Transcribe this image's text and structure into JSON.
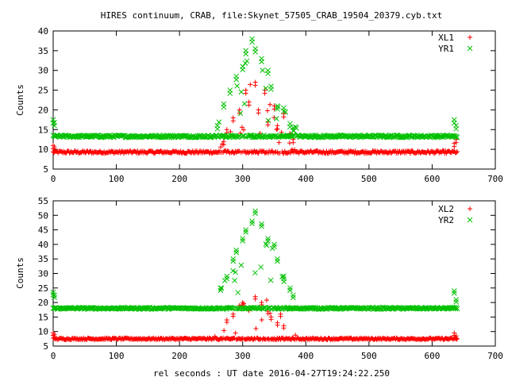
{
  "page": {
    "title": "HIRES continuum, CRAB, file:Skynet_57505_CRAB_19504_20379.cyb.txt",
    "xlabel": "rel seconds : UT date 2016-04-27T19:24:22.250"
  },
  "colors": {
    "red": "#ff0000",
    "green": "#00c000"
  },
  "chart_data": [
    {
      "type": "scatter",
      "title": "HIRES continuum, CRAB, file:Skynet_57505_CRAB_19504_20379.cyb.txt",
      "ylabel": "Counts",
      "xlim": [
        0,
        700
      ],
      "ylim": [
        5,
        40
      ],
      "xticks": [
        "0",
        "100",
        "200",
        "300",
        "400",
        "500",
        "600",
        "700"
      ],
      "yticks": [
        "5",
        "10",
        "15",
        "20",
        "25",
        "30",
        "35",
        "40"
      ],
      "legend_position": "top-right",
      "series": [
        {
          "name": "XL1",
          "marker": "plus",
          "color": "#ff0000",
          "baseline": 9.3,
          "noise": 0.35,
          "spikes": [
            [
              0,
              11.0
            ],
            [
              2,
              10.6
            ],
            [
              270,
              12.0
            ],
            [
              275,
              15.0
            ],
            [
              285,
              18.0
            ],
            [
              295,
              20.0
            ],
            [
              305,
              25.0
            ],
            [
              310,
              22.0
            ],
            [
              320,
              27.0
            ],
            [
              325,
              20.0
            ],
            [
              335,
              25.0
            ],
            [
              340,
              17.0
            ],
            [
              350,
              21.0
            ],
            [
              355,
              16.0
            ],
            [
              365,
              19.0
            ],
            [
              375,
              14.0
            ],
            [
              380,
              12.5
            ],
            [
              635,
              11.5
            ],
            [
              638,
              12.5
            ]
          ],
          "peak": {
            "center": 320,
            "width": 40,
            "height": 12
          }
        },
        {
          "name": "YR1",
          "marker": "cross",
          "color": "#00c000",
          "baseline": 13.3,
          "noise": 0.3,
          "spikes": [
            [
              0,
              17.5
            ],
            [
              2,
              16.8
            ],
            [
              260,
              16.0
            ],
            [
              270,
              21.5
            ],
            [
              280,
              25.0
            ],
            [
              290,
              28.5
            ],
            [
              300,
              31.0
            ],
            [
              305,
              35.0
            ],
            [
              315,
              38.0
            ],
            [
              320,
              35.5
            ],
            [
              330,
              33.0
            ],
            [
              340,
              30.0
            ],
            [
              345,
              26.0
            ],
            [
              355,
              21.0
            ],
            [
              365,
              20.5
            ],
            [
              375,
              16.5
            ],
            [
              380,
              15.5
            ],
            [
              635,
              17.5
            ],
            [
              638,
              16.0
            ]
          ],
          "peak": {
            "center": 318,
            "width": 45,
            "height": 15
          }
        }
      ]
    },
    {
      "type": "scatter",
      "title": "",
      "ylabel": "Counts",
      "xlabel": "rel seconds : UT date 2016-04-27T19:24:22.250",
      "xlim": [
        0,
        700
      ],
      "ylim": [
        5,
        55
      ],
      "xticks": [
        "0",
        "100",
        "200",
        "300",
        "400",
        "500",
        "600",
        "700"
      ],
      "yticks": [
        "5",
        "10",
        "15",
        "20",
        "25",
        "30",
        "35",
        "40",
        "45",
        "50",
        "55"
      ],
      "legend_position": "top-right",
      "series": [
        {
          "name": "XL2",
          "marker": "plus",
          "color": "#ff0000",
          "baseline": 7.5,
          "noise": 0.3,
          "spikes": [
            [
              0,
              9.5
            ],
            [
              2,
              9.0
            ],
            [
              275,
              14.0
            ],
            [
              285,
              16.0
            ],
            [
              295,
              19.0
            ],
            [
              300,
              20.0
            ],
            [
              310,
              18.0
            ],
            [
              320,
              22.0
            ],
            [
              330,
              20.0
            ],
            [
              340,
              17.0
            ],
            [
              345,
              15.0
            ],
            [
              355,
              13.0
            ],
            [
              360,
              16.0
            ],
            [
              365,
              12.0
            ],
            [
              635,
              9.5
            ],
            [
              638,
              8.5
            ]
          ],
          "peak": {
            "center": 320,
            "width": 40,
            "height": 12
          }
        },
        {
          "name": "YR2",
          "marker": "cross",
          "color": "#00c000",
          "baseline": 18.0,
          "noise": 0.3,
          "spikes": [
            [
              0,
              23.5
            ],
            [
              2,
              22.5
            ],
            [
              265,
              25.0
            ],
            [
              275,
              29.0
            ],
            [
              285,
              35.0
            ],
            [
              290,
              38.0
            ],
            [
              300,
              42.0
            ],
            [
              305,
              45.0
            ],
            [
              315,
              48.0
            ],
            [
              320,
              51.5
            ],
            [
              330,
              47.0
            ],
            [
              340,
              42.0
            ],
            [
              350,
              40.0
            ],
            [
              355,
              35.0
            ],
            [
              365,
              29.0
            ],
            [
              375,
              25.0
            ],
            [
              380,
              22.5
            ],
            [
              635,
              24.0
            ],
            [
              638,
              21.0
            ]
          ],
          "peak": {
            "center": 320,
            "width": 45,
            "height": 22
          }
        }
      ]
    }
  ]
}
